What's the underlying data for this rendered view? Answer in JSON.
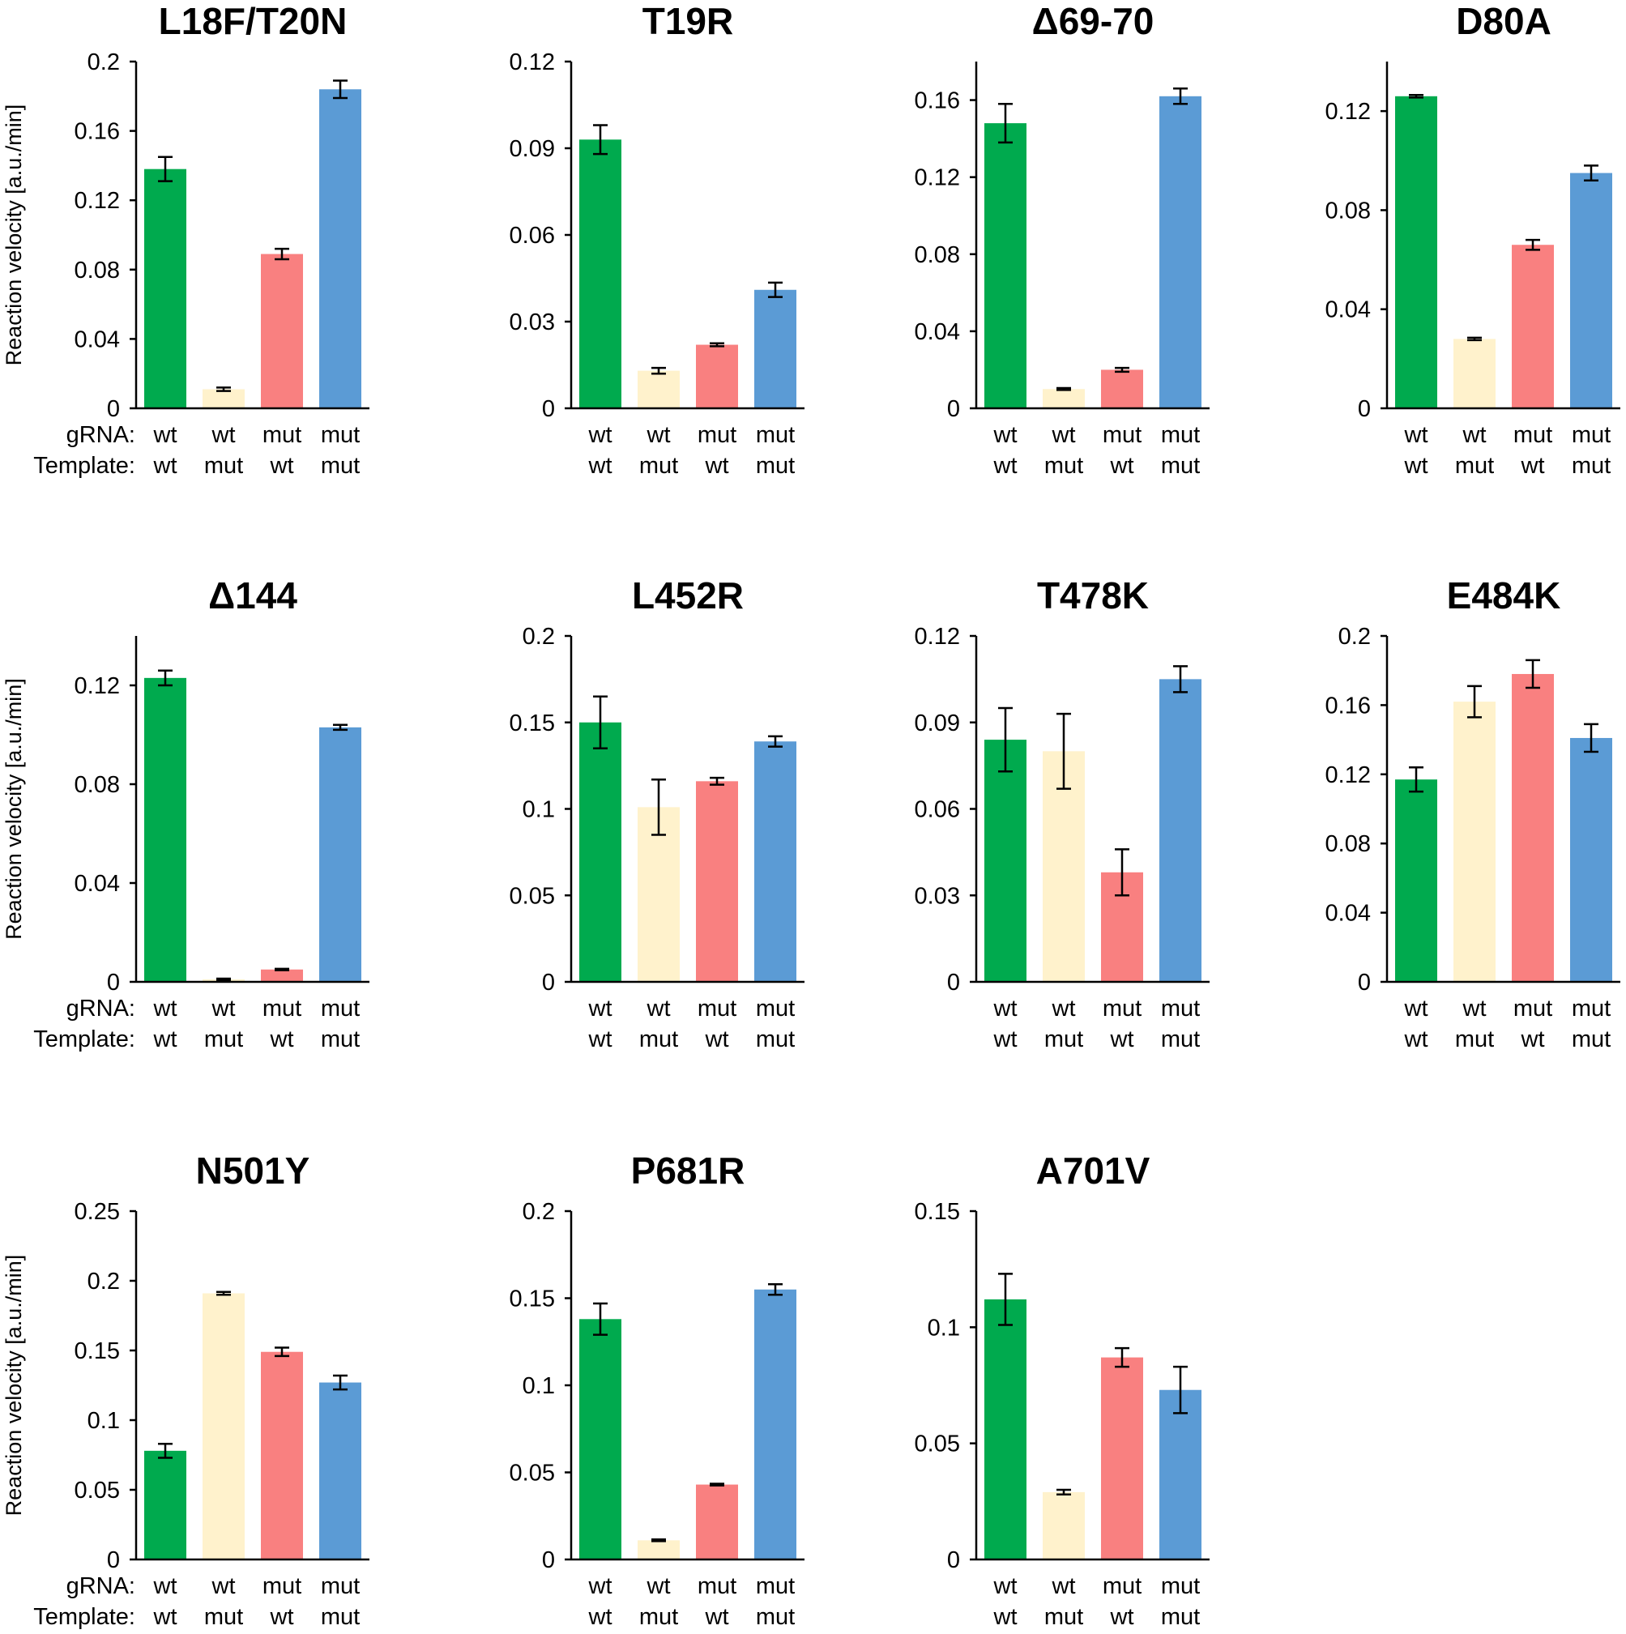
{
  "figure": {
    "colors": {
      "wt_wt": "#00aa4e",
      "wt_mut": "#fff2cc",
      "mut_wt": "#f98080",
      "mut_mut": "#5b9bd5"
    },
    "row_labels": {
      "grna": "gRNA:",
      "template": "Template:"
    },
    "categories_grna": [
      "wt",
      "wt",
      "mut",
      "mut"
    ],
    "categories_template": [
      "wt",
      "mut",
      "wt",
      "mut"
    ],
    "ylabel": "Reaction velocity [a.u./min]"
  },
  "chart_data": [
    {
      "type": "bar",
      "title": "L18F/T20N",
      "ylim": [
        0,
        0.2
      ],
      "yticks": [
        0,
        0.04,
        0.08,
        0.12,
        0.16,
        0.2
      ],
      "ytick_labels": [
        "0",
        "0.04",
        "0.08",
        "0.12",
        "0.16",
        "0.2"
      ],
      "values": [
        0.138,
        0.011,
        0.089,
        0.184
      ],
      "errors": [
        0.007,
        0.001,
        0.003,
        0.005
      ]
    },
    {
      "type": "bar",
      "title": "T19R",
      "ylim": [
        0,
        0.12
      ],
      "yticks": [
        0,
        0.03,
        0.06,
        0.09,
        0.12
      ],
      "ytick_labels": [
        "0",
        "0.03",
        "0.06",
        "0.09",
        "0.12"
      ],
      "values": [
        0.093,
        0.013,
        0.022,
        0.041
      ],
      "errors": [
        0.005,
        0.001,
        0.0005,
        0.0025
      ]
    },
    {
      "type": "bar",
      "title": "Δ69-70",
      "ylim": [
        0,
        0.18
      ],
      "yticks": [
        0,
        0.04,
        0.08,
        0.12,
        0.16
      ],
      "ytick_labels": [
        "0",
        "0.04",
        "0.08",
        "0.12",
        "0.16"
      ],
      "values": [
        0.148,
        0.01,
        0.02,
        0.162
      ],
      "errors": [
        0.01,
        0.0005,
        0.001,
        0.004
      ]
    },
    {
      "type": "bar",
      "title": "D80A",
      "ylim": [
        0,
        0.14
      ],
      "yticks": [
        0,
        0.04,
        0.08,
        0.12
      ],
      "ytick_labels": [
        "0",
        "0.04",
        "0.08",
        "0.12"
      ],
      "values": [
        0.126,
        0.028,
        0.066,
        0.095
      ],
      "errors": [
        0.0005,
        0.0005,
        0.002,
        0.003
      ]
    },
    {
      "type": "bar",
      "title": "Δ144",
      "ylim": [
        0,
        0.14
      ],
      "yticks": [
        0,
        0.04,
        0.08,
        0.12
      ],
      "ytick_labels": [
        "0",
        "0.04",
        "0.08",
        "0.12"
      ],
      "values": [
        0.123,
        0.001,
        0.005,
        0.103
      ],
      "errors": [
        0.003,
        0.0003,
        0.0003,
        0.001
      ]
    },
    {
      "type": "bar",
      "title": "L452R",
      "ylim": [
        0,
        0.2
      ],
      "yticks": [
        0,
        0.05,
        0.1,
        0.15,
        0.2
      ],
      "ytick_labels": [
        "0",
        "0.05",
        "0.1",
        "0.15",
        "0.2"
      ],
      "values": [
        0.15,
        0.101,
        0.116,
        0.139
      ],
      "errors": [
        0.015,
        0.016,
        0.002,
        0.003
      ]
    },
    {
      "type": "bar",
      "title": "T478K",
      "ylim": [
        0,
        0.12
      ],
      "yticks": [
        0,
        0.03,
        0.06,
        0.09,
        0.12
      ],
      "ytick_labels": [
        "0",
        "0.03",
        "0.06",
        "0.09",
        "0.12"
      ],
      "values": [
        0.084,
        0.08,
        0.038,
        0.105
      ],
      "errors": [
        0.011,
        0.013,
        0.008,
        0.0045
      ]
    },
    {
      "type": "bar",
      "title": "E484K",
      "ylim": [
        0,
        0.2
      ],
      "yticks": [
        0,
        0.04,
        0.08,
        0.12,
        0.16,
        0.2
      ],
      "ytick_labels": [
        "0",
        "0.04",
        "0.08",
        "0.12",
        "0.16",
        "0.2"
      ],
      "values": [
        0.117,
        0.162,
        0.178,
        0.141
      ],
      "errors": [
        0.007,
        0.009,
        0.008,
        0.008
      ]
    },
    {
      "type": "bar",
      "title": "N501Y",
      "ylim": [
        0,
        0.25
      ],
      "yticks": [
        0,
        0.05,
        0.1,
        0.15,
        0.2,
        0.25
      ],
      "ytick_labels": [
        "0",
        "0.05",
        "0.1",
        "0.15",
        "0.2",
        "0.25"
      ],
      "values": [
        0.078,
        0.191,
        0.149,
        0.127
      ],
      "errors": [
        0.005,
        0.001,
        0.003,
        0.005
      ]
    },
    {
      "type": "bar",
      "title": "P681R",
      "ylim": [
        0,
        0.2
      ],
      "yticks": [
        0,
        0.05,
        0.1,
        0.15,
        0.2
      ],
      "ytick_labels": [
        "0",
        "0.05",
        "0.1",
        "0.15",
        "0.2"
      ],
      "values": [
        0.138,
        0.011,
        0.043,
        0.155
      ],
      "errors": [
        0.009,
        0.0005,
        0.0005,
        0.003
      ]
    },
    {
      "type": "bar",
      "title": "A701V",
      "ylim": [
        0,
        0.15
      ],
      "yticks": [
        0,
        0.05,
        0.1,
        0.15
      ],
      "ytick_labels": [
        "0",
        "0.05",
        "0.1",
        "0.15"
      ],
      "values": [
        0.112,
        0.029,
        0.087,
        0.073
      ],
      "errors": [
        0.011,
        0.001,
        0.004,
        0.01
      ]
    }
  ]
}
